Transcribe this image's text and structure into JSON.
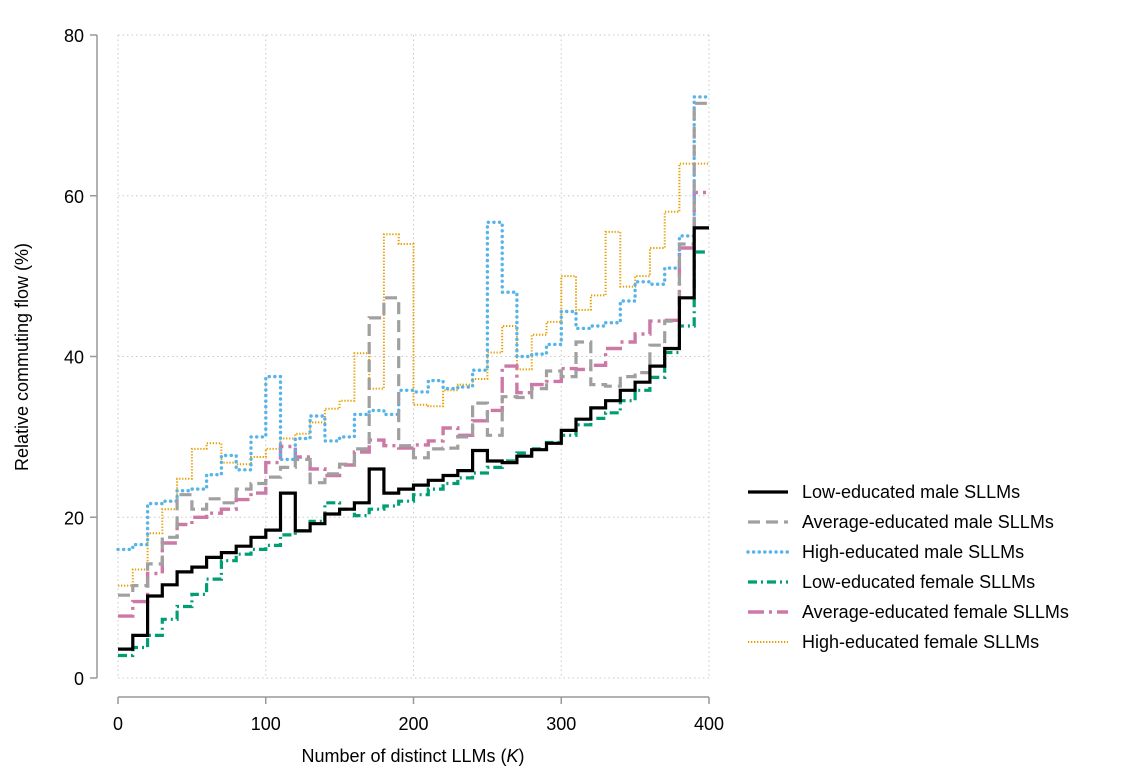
{
  "chart_data": {
    "type": "line",
    "step": true,
    "title": "",
    "xlabel": "Number of distinct LLMs",
    "xlabel_var": "K",
    "ylabel": "Relative commuting flow (%)",
    "xlim": [
      0,
      400
    ],
    "ylim": [
      0,
      80
    ],
    "xticks": [
      "0",
      "100",
      "200",
      "300",
      "400"
    ],
    "yticks": [
      "0",
      "20",
      "40",
      "60",
      "80"
    ],
    "grid": true,
    "legend_position": "right",
    "series": [
      {
        "name": "Low-educated male SLLMs",
        "color": "#000000",
        "dash": "solid",
        "x": [
          0,
          10,
          20,
          30,
          40,
          50,
          60,
          70,
          80,
          90,
          100,
          110,
          120,
          130,
          140,
          150,
          160,
          170,
          180,
          190,
          200,
          210,
          220,
          230,
          240,
          250,
          260,
          270,
          280,
          290,
          300,
          310,
          320,
          330,
          340,
          350,
          360,
          370,
          380,
          390,
          400
        ],
        "y": [
          3.6,
          5.3,
          10.2,
          11.6,
          13.2,
          13.8,
          15.0,
          15.6,
          16.4,
          17.5,
          18.4,
          23.0,
          18.3,
          19.2,
          20.4,
          21.0,
          21.8,
          26.0,
          23.0,
          23.5,
          24.0,
          24.6,
          25.2,
          25.8,
          28.3,
          27.0,
          26.8,
          27.6,
          28.4,
          29.2,
          30.8,
          32.2,
          33.6,
          34.5,
          35.8,
          36.8,
          38.8,
          41.0,
          47.3,
          56.0,
          56.0
        ]
      },
      {
        "name": "Average-educated male SLLMs",
        "color": "#a0a0a0",
        "dash": "dashed",
        "x": [
          0,
          10,
          20,
          30,
          40,
          50,
          60,
          70,
          80,
          90,
          100,
          110,
          120,
          130,
          140,
          150,
          160,
          170,
          180,
          190,
          200,
          210,
          220,
          230,
          240,
          250,
          260,
          270,
          280,
          290,
          300,
          310,
          320,
          330,
          340,
          350,
          360,
          370,
          380,
          390,
          400
        ],
        "y": [
          10.3,
          11.5,
          14.2,
          17.5,
          22.8,
          21.0,
          22.3,
          21.8,
          23.5,
          24.2,
          25.0,
          26.2,
          27.2,
          24.3,
          25.4,
          26.6,
          28.5,
          44.8,
          47.3,
          28.9,
          27.4,
          28.5,
          28.6,
          30.0,
          34.2,
          30.2,
          35.0,
          34.9,
          36.0,
          38.2,
          37.5,
          41.8,
          36.5,
          36.3,
          37.5,
          38.0,
          41.4,
          44.4,
          54.0,
          71.5,
          71.5
        ]
      },
      {
        "name": "High-educated male SLLMs",
        "color": "#56b4e9",
        "dash": "dotted",
        "x": [
          0,
          10,
          20,
          30,
          40,
          50,
          60,
          70,
          80,
          90,
          100,
          110,
          120,
          130,
          140,
          150,
          160,
          170,
          180,
          190,
          200,
          210,
          220,
          230,
          240,
          250,
          260,
          270,
          280,
          290,
          300,
          310,
          320,
          330,
          340,
          350,
          360,
          370,
          380,
          390,
          400
        ],
        "y": [
          16.0,
          16.6,
          21.7,
          22.0,
          23.3,
          23.5,
          25.3,
          27.7,
          25.9,
          30.0,
          37.5,
          27.2,
          29.8,
          32.6,
          29.5,
          30.0,
          32.8,
          33.3,
          32.8,
          35.8,
          35.6,
          37.0,
          36.0,
          36.2,
          38.3,
          56.7,
          48.0,
          40.0,
          40.3,
          41.5,
          45.6,
          43.5,
          43.8,
          44.2,
          46.9,
          49.3,
          49.0,
          51.0,
          55.0,
          72.3,
          72.3
        ]
      },
      {
        "name": "Low-educated female SLLMs",
        "color": "#009e73",
        "dash": "dashdot",
        "x": [
          0,
          10,
          20,
          30,
          40,
          50,
          60,
          70,
          80,
          90,
          100,
          110,
          120,
          130,
          140,
          150,
          160,
          170,
          180,
          190,
          200,
          210,
          220,
          230,
          240,
          250,
          260,
          270,
          280,
          290,
          300,
          310,
          320,
          330,
          340,
          350,
          360,
          370,
          380,
          390,
          400
        ],
        "y": [
          2.8,
          3.8,
          5.3,
          7.3,
          8.9,
          10.4,
          12.3,
          14.6,
          15.4,
          16.0,
          16.5,
          17.8,
          18.3,
          19.5,
          21.8,
          21.0,
          20.2,
          21.0,
          21.4,
          22.0,
          22.8,
          23.5,
          24.2,
          24.9,
          25.5,
          26.2,
          27.0,
          28.0,
          28.5,
          29.3,
          30.2,
          31.5,
          32.3,
          33.0,
          34.5,
          35.8,
          37.4,
          40.5,
          43.8,
          53.0,
          53.0
        ]
      },
      {
        "name": "Average-educated female SLLMs",
        "color": "#cc79a7",
        "dash": "longdash",
        "x": [
          0,
          10,
          20,
          30,
          40,
          50,
          60,
          70,
          80,
          90,
          100,
          110,
          120,
          130,
          140,
          150,
          160,
          170,
          180,
          190,
          200,
          210,
          220,
          230,
          240,
          250,
          260,
          270,
          280,
          290,
          300,
          310,
          320,
          330,
          340,
          350,
          360,
          370,
          380,
          390,
          400
        ],
        "y": [
          7.7,
          9.5,
          13.0,
          16.8,
          19.1,
          20.0,
          20.5,
          21.0,
          22.2,
          23.0,
          26.8,
          28.8,
          27.5,
          26.0,
          25.2,
          26.5,
          28.1,
          29.6,
          28.9,
          28.6,
          29.0,
          29.5,
          31.1,
          30.2,
          32.0,
          33.3,
          38.8,
          35.5,
          36.5,
          36.9,
          38.5,
          38.4,
          38.9,
          41.0,
          41.8,
          42.8,
          44.4,
          44.5,
          53.5,
          60.4,
          60.4
        ]
      },
      {
        "name": "High-educated female SLLMs",
        "color": "#e69f00",
        "dash": "densedot",
        "x": [
          0,
          10,
          20,
          30,
          40,
          50,
          60,
          70,
          80,
          90,
          100,
          110,
          120,
          130,
          140,
          150,
          160,
          170,
          180,
          190,
          200,
          210,
          220,
          230,
          240,
          250,
          260,
          270,
          280,
          290,
          300,
          310,
          320,
          330,
          340,
          350,
          360,
          370,
          380,
          390,
          400
        ],
        "y": [
          11.5,
          13.5,
          18.0,
          21.0,
          24.8,
          28.5,
          29.2,
          26.8,
          26.6,
          27.5,
          28.5,
          29.8,
          30.4,
          31.8,
          33.5,
          34.5,
          40.4,
          36.0,
          55.2,
          54.0,
          34.0,
          33.8,
          35.8,
          36.5,
          37.2,
          40.5,
          43.8,
          38.4,
          42.7,
          44.3,
          50.0,
          45.8,
          47.6,
          55.5,
          48.7,
          50.0,
          53.5,
          58.0,
          64.0,
          64.0,
          64.0
        ]
      }
    ]
  }
}
